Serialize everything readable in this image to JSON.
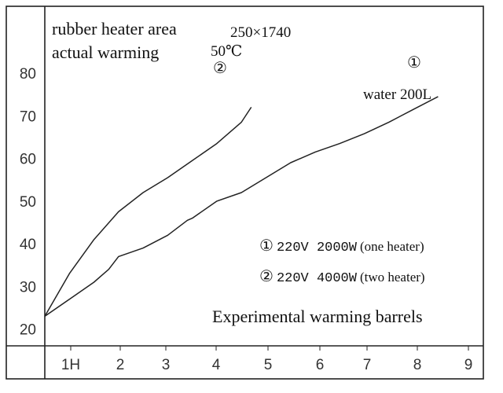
{
  "chart_data": {
    "type": "line",
    "title": "Experimental warming barrels",
    "xlabel": "",
    "ylabel": "",
    "x_tick_labels": [
      "1H",
      "2",
      "3",
      "4",
      "5",
      "6",
      "7",
      "8",
      "9"
    ],
    "y_ticks": [
      20,
      30,
      40,
      50,
      60,
      70,
      80
    ],
    "xlim": [
      0,
      9
    ],
    "ylim": [
      17,
      87
    ],
    "grid": false,
    "series": [
      {
        "name": "① 220V 2000W (one heater)",
        "marker": "①",
        "x": [
          0,
          0.5,
          1,
          1.3,
          1.5,
          2,
          2.5,
          2.9,
          3,
          3.5,
          4,
          4.5,
          5,
          5.5,
          6,
          6.5,
          7,
          7.5,
          8
        ],
        "y": [
          23,
          27,
          31,
          34,
          37,
          39,
          42,
          45.5,
          46,
          50,
          52,
          55.5,
          59,
          61.5,
          63.5,
          65.8,
          68.5,
          71.5,
          74.5
        ]
      },
      {
        "name": "② 220V 4000W (two heater)",
        "marker": "②",
        "x": [
          0,
          0.5,
          1,
          1.5,
          2,
          2.5,
          3,
          3.5,
          4,
          4.2
        ],
        "y": [
          23,
          33,
          41,
          47.5,
          52,
          55.5,
          59.5,
          63.5,
          68.5,
          72
        ]
      }
    ]
  },
  "annotations": {
    "heater_area_label": "rubber heater area",
    "heater_area_value": "250×1740",
    "warming_label": "actual warming",
    "warming_value": "50℃",
    "marker_two": "②",
    "marker_one": "①",
    "water_label": "water 200L",
    "legend_one_marker": "①",
    "legend_one_spec": "220V 2000W",
    "legend_one_note": "(one heater)",
    "legend_two_marker": "②",
    "legend_two_spec": "220V 4000W",
    "legend_two_note": "(two heater)",
    "caption": "Experimental warming barrels"
  },
  "colors": {
    "line": "#222222",
    "frame": "#222222",
    "background": "#ffffff"
  }
}
